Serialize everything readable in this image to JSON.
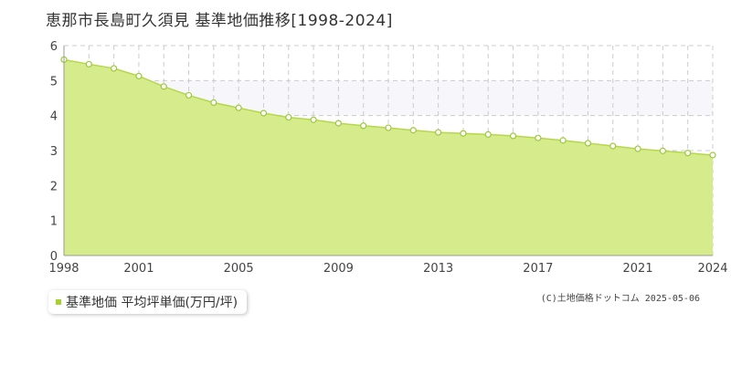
{
  "header": {
    "title": "恵那市長島町久須見 基準地価推移[1998-2024]"
  },
  "legend": {
    "label": "基準地価 平均坪単価(万円/坪)",
    "swatch_color": "#a6d230"
  },
  "credit": "(C)土地価格ドットコム 2025-05-06",
  "colors": {
    "area_fill": "#d6eb8c",
    "line": "#b5d84a",
    "marker_stroke": "#9bc93a",
    "marker_fill": "#ffffff",
    "band_fill": "#f7f7fb",
    "grid": "#cccccc"
  },
  "chart_data": {
    "type": "area",
    "title": "恵那市長島町久須見 基準地価推移[1998-2024]",
    "xlabel": "",
    "ylabel": "",
    "x": [
      1998,
      1999,
      2000,
      2001,
      2002,
      2003,
      2004,
      2005,
      2006,
      2007,
      2008,
      2009,
      2010,
      2011,
      2012,
      2013,
      2014,
      2015,
      2016,
      2017,
      2018,
      2019,
      2020,
      2021,
      2022,
      2023,
      2024
    ],
    "series": [
      {
        "name": "基準地価 平均坪単価(万円/坪)",
        "values": [
          5.6,
          5.47,
          5.35,
          5.13,
          4.83,
          4.58,
          4.37,
          4.22,
          4.07,
          3.95,
          3.88,
          3.78,
          3.71,
          3.65,
          3.58,
          3.52,
          3.49,
          3.46,
          3.42,
          3.36,
          3.29,
          3.21,
          3.13,
          3.05,
          2.99,
          2.93,
          2.87
        ]
      }
    ],
    "x_tick_labels": [
      "1998",
      "2001",
      "2005",
      "2009",
      "2013",
      "2017",
      "2021",
      "2024"
    ],
    "y_tick_labels": [
      "0",
      "1",
      "2",
      "3",
      "4",
      "5",
      "6"
    ],
    "xlim": [
      1998,
      2024
    ],
    "ylim": [
      0,
      6
    ],
    "grid": true,
    "band_range": [
      4,
      5
    ],
    "legend_position": "bottom-left"
  }
}
